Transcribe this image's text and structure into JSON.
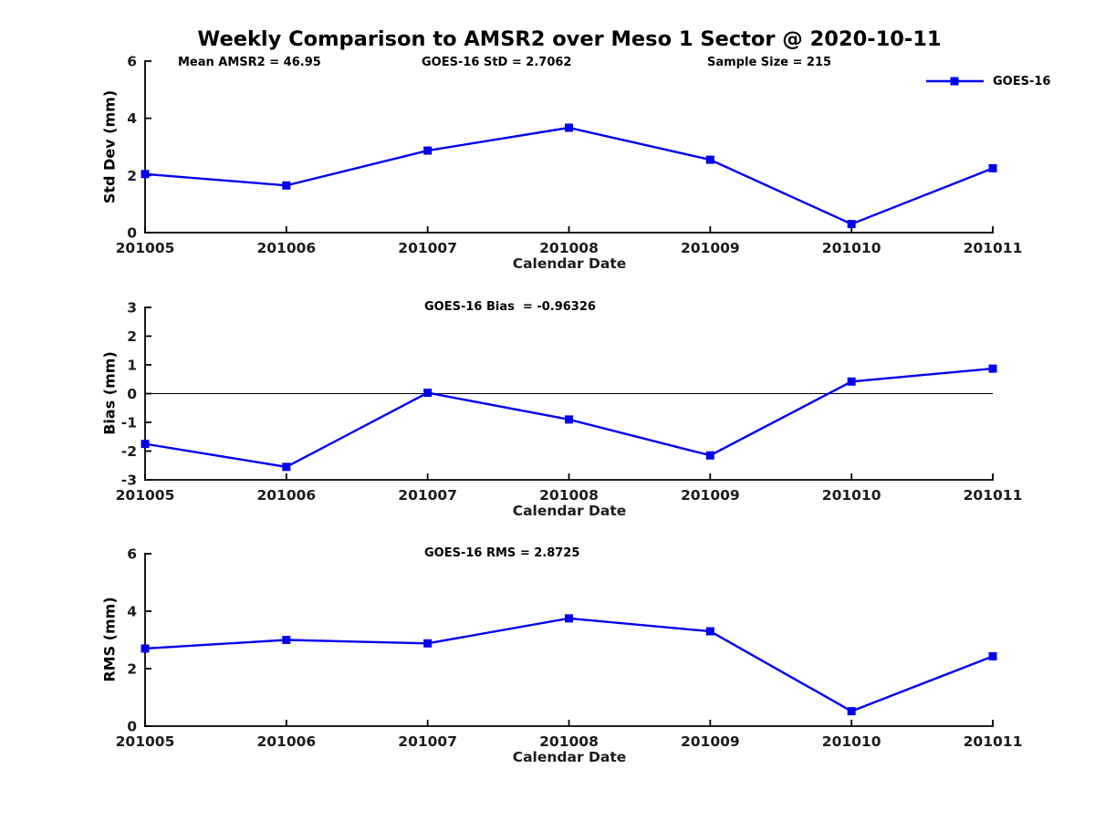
{
  "title": "Weekly Comparison to AMSR2 over Meso 1 Sector @ 2020-10-11",
  "legend": {
    "label": "GOES-16"
  },
  "colors": {
    "line": "#0000ee",
    "axis": "#000000",
    "tick_text": "#1c1c1c",
    "zero_line": "#000000",
    "background": "#ffffff"
  },
  "chart_data": [
    {
      "type": "line",
      "name": "std-dev",
      "xlabel": "Calendar Date",
      "ylabel": "Std Dev (mm)",
      "ylim": [
        0,
        6
      ],
      "yticks": [
        0,
        2,
        4,
        6
      ],
      "grid": false,
      "categories": [
        "201005",
        "201006",
        "201007",
        "201008",
        "201009",
        "201010",
        "201011"
      ],
      "series": [
        {
          "name": "GOES-16",
          "values": [
            2.05,
            1.65,
            2.87,
            3.67,
            2.55,
            0.3,
            2.25
          ]
        }
      ],
      "annotations": [
        {
          "text": "Mean AMSR2 = 46.95"
        },
        {
          "text": "GOES-16 StD = 2.7062"
        },
        {
          "text": "Sample Size = 215"
        }
      ],
      "legend": {
        "label": "GOES-16",
        "position": "top-right",
        "marker": "square"
      }
    },
    {
      "type": "line",
      "name": "bias",
      "xlabel": "Calendar Date",
      "ylabel": "Bias (mm)",
      "ylim": [
        -3,
        3
      ],
      "yticks": [
        -3,
        -2,
        -1,
        0,
        1,
        2,
        3
      ],
      "zero_line": true,
      "grid": false,
      "categories": [
        "201005",
        "201006",
        "201007",
        "201008",
        "201009",
        "201010",
        "201011"
      ],
      "series": [
        {
          "name": "GOES-16",
          "values": [
            -1.75,
            -2.55,
            0.03,
            -0.9,
            -2.15,
            0.42,
            0.87
          ]
        }
      ],
      "annotations": [
        {
          "text": "GOES-16 Bias  = -0.96326"
        }
      ]
    },
    {
      "type": "line",
      "name": "rms",
      "xlabel": "Calendar Date",
      "ylabel": "RMS (mm)",
      "ylim": [
        0,
        6
      ],
      "yticks": [
        0,
        2,
        4,
        6
      ],
      "grid": false,
      "categories": [
        "201005",
        "201006",
        "201007",
        "201008",
        "201009",
        "201010",
        "201011"
      ],
      "series": [
        {
          "name": "GOES-16",
          "values": [
            2.7,
            3.0,
            2.88,
            3.75,
            3.3,
            0.52,
            2.43
          ]
        }
      ],
      "annotations": [
        {
          "text": "GOES-16 RMS = 2.8725"
        }
      ]
    }
  ]
}
